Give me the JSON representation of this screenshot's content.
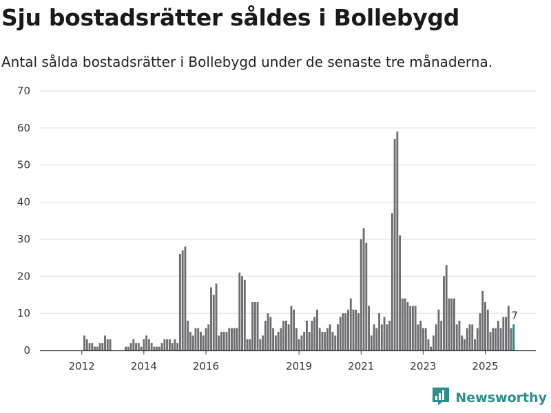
{
  "title": "Sju bostadsrätter såldes i Bollebygd",
  "subtitle": "Antal sålda bostadsrätter i Bollebygd under de senaste tre månaderna.",
  "brand": {
    "name": "Newsworthy",
    "logo_icon": "bar-chart-logo-icon"
  },
  "colors": {
    "bar": "#6e6d72",
    "highlight": "#1f8f85",
    "grid": "#dddddd",
    "axis": "#333333",
    "brand": "#2a8f8d"
  },
  "chart_data": {
    "type": "bar",
    "title": "Sju bostadsrätter såldes i Bollebygd",
    "xlabel": "",
    "ylabel": "",
    "ylim": [
      0,
      70
    ],
    "yticks": [
      0,
      10,
      20,
      30,
      40,
      50,
      60,
      70
    ],
    "xticks": [
      {
        "label": "2012",
        "index": 7
      },
      {
        "label": "2014",
        "index": 31
      },
      {
        "label": "2016",
        "index": 55
      },
      {
        "label": "2019",
        "index": 91
      },
      {
        "label": "2021",
        "index": 115
      },
      {
        "label": "2023",
        "index": 139
      },
      {
        "label": "2025",
        "index": 163
      }
    ],
    "period": "monthly, rolling three-month totals, 2011-05 to 2025-11",
    "values": [
      0,
      0,
      0,
      0,
      0,
      0,
      0,
      0,
      4,
      3,
      2,
      2,
      1,
      1,
      2,
      2,
      4,
      3,
      3,
      0,
      0,
      0,
      0,
      0,
      1,
      1,
      2,
      3,
      2,
      2,
      1,
      3,
      4,
      3,
      2,
      1,
      1,
      1,
      2,
      3,
      3,
      3,
      2,
      3,
      2,
      26,
      27,
      28,
      8,
      5,
      4,
      6,
      6,
      5,
      4,
      6,
      7,
      17,
      15,
      18,
      4,
      5,
      5,
      5,
      6,
      6,
      6,
      6,
      21,
      20,
      19,
      3,
      3,
      13,
      13,
      13,
      3,
      4,
      8,
      10,
      9,
      6,
      4,
      5,
      6,
      8,
      8,
      7,
      12,
      11,
      6,
      3,
      4,
      5,
      8,
      5,
      8,
      9,
      11,
      6,
      5,
      5,
      6,
      7,
      5,
      4,
      7,
      9,
      10,
      10,
      11,
      14,
      11,
      11,
      10,
      30,
      33,
      29,
      12,
      4,
      7,
      6,
      10,
      7,
      9,
      7,
      8,
      37,
      57,
      59,
      31,
      14,
      14,
      13,
      12,
      12,
      12,
      7,
      8,
      6,
      6,
      3,
      1,
      4,
      7,
      11,
      8,
      20,
      23,
      14,
      14,
      14,
      7,
      8,
      4,
      3,
      6,
      7,
      7,
      3,
      6,
      10,
      16,
      13,
      11,
      5,
      6,
      6,
      8,
      6,
      9,
      9,
      12,
      6,
      7
    ],
    "series": [
      {
        "name": "Antal sålda bostadsrätter",
        "values_ref": "values"
      }
    ],
    "highlight": {
      "index": 174,
      "label": "7"
    }
  }
}
